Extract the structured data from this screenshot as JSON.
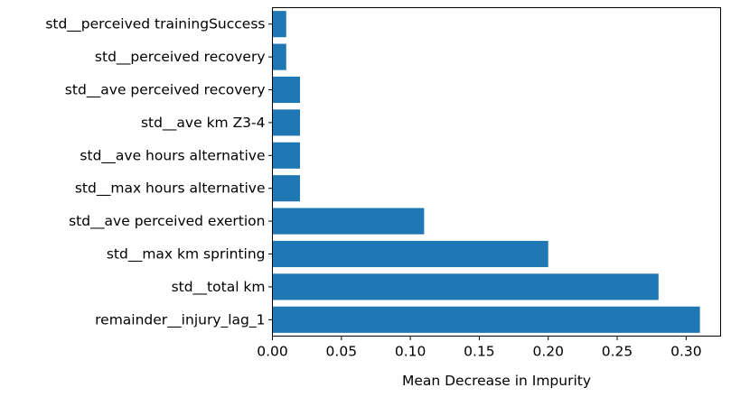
{
  "chart_data": {
    "type": "bar",
    "orientation": "horizontal",
    "categories": [
      "remainder__injury_lag_1",
      "std__total km",
      "std__max km sprinting",
      "std__ave perceived exertion",
      "std__max hours alternative",
      "std__ave hours alternative",
      "std__ave km Z3-4",
      "std__ave perceived recovery",
      "std__perceived recovery",
      "std__perceived trainingSuccess"
    ],
    "values": [
      0.31,
      0.28,
      0.2,
      0.11,
      0.02,
      0.02,
      0.02,
      0.02,
      0.01,
      0.01
    ],
    "title": "",
    "xlabel": "Mean Decrease in Impurity",
    "ylabel": "",
    "xlim": [
      0.0,
      0.325
    ],
    "xticks": [
      "0.00",
      "0.05",
      "0.10",
      "0.15",
      "0.20",
      "0.25",
      "0.30"
    ],
    "bar_color": "#1f77b4",
    "grid": false,
    "legend": "none"
  }
}
